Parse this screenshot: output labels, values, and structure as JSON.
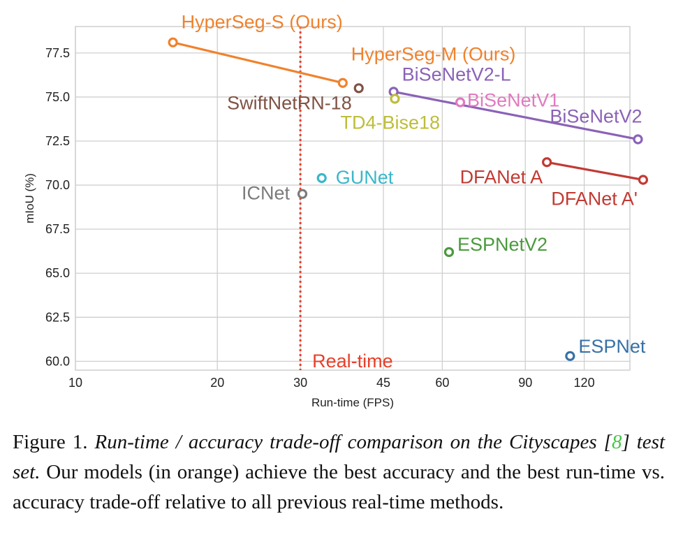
{
  "chart_data": {
    "type": "scatter",
    "xlabel": "Run-time (FPS)",
    "ylabel": "mIoU (%)",
    "x_scale": "log",
    "xlim": [
      10,
      150
    ],
    "ylim": [
      59.5,
      79.0
    ],
    "x_ticks": [
      10,
      20,
      30,
      45,
      60,
      90,
      120
    ],
    "x_tick_labels": [
      "10",
      "20",
      "30",
      "45",
      "60",
      "90",
      "120"
    ],
    "y_ticks": [
      60.0,
      62.5,
      65.0,
      67.5,
      70.0,
      72.5,
      75.0,
      77.5
    ],
    "y_tick_labels": [
      "60.0",
      "62.5",
      "65.0",
      "67.5",
      "70.0",
      "72.5",
      "75.0",
      "77.5"
    ],
    "grid": true,
    "reference_line": {
      "x": 30,
      "label": "Real-time",
      "color": "#e8402a"
    },
    "series": [
      {
        "name": "HyperSeg",
        "color": "#f0822d",
        "line": true,
        "points": [
          {
            "x": 16.1,
            "y": 78.1,
            "label": "HyperSeg-S (Ours)"
          },
          {
            "x": 36.9,
            "y": 75.8,
            "label": "HyperSeg-M (Ours)"
          }
        ]
      },
      {
        "name": "SwiftNetRN-18",
        "color": "#7f5345",
        "line": false,
        "points": [
          {
            "x": 39.9,
            "y": 75.5,
            "label": "SwiftNetRN-18"
          }
        ]
      },
      {
        "name": "BiSeNetV2",
        "color": "#8a62b7",
        "line": true,
        "points": [
          {
            "x": 47.3,
            "y": 75.3,
            "label": "BiSeNetV2-L"
          },
          {
            "x": 156.0,
            "y": 72.6,
            "label": "BiSeNetV2"
          }
        ]
      },
      {
        "name": "TD4-Bise18",
        "color": "#bdbd3b",
        "line": false,
        "points": [
          {
            "x": 47.6,
            "y": 74.9,
            "label": "TD4-Bise18"
          }
        ]
      },
      {
        "name": "BiSeNetV1",
        "color": "#e07ac0",
        "line": false,
        "points": [
          {
            "x": 65.5,
            "y": 74.7,
            "label": "BiSeNetV1"
          }
        ]
      },
      {
        "name": "DFANet",
        "color": "#c23a33",
        "line": true,
        "points": [
          {
            "x": 100.0,
            "y": 71.3,
            "label": "DFANet A"
          },
          {
            "x": 160.0,
            "y": 70.3,
            "label": "DFANet A'"
          }
        ]
      },
      {
        "name": "GUNet",
        "color": "#3ab7c9",
        "line": false,
        "points": [
          {
            "x": 33.3,
            "y": 70.4,
            "label": "GUNet"
          }
        ]
      },
      {
        "name": "ICNet",
        "color": "#7c7c7c",
        "line": false,
        "points": [
          {
            "x": 30.3,
            "y": 69.5,
            "label": "ICNet"
          }
        ]
      },
      {
        "name": "ESPNetV2",
        "color": "#4a9a3d",
        "line": false,
        "points": [
          {
            "x": 62.0,
            "y": 66.2,
            "label": "ESPNetV2"
          }
        ]
      },
      {
        "name": "ESPNet",
        "color": "#3771a6",
        "line": false,
        "points": [
          {
            "x": 112.0,
            "y": 60.3,
            "label": "ESPNet"
          }
        ]
      }
    ]
  },
  "caption": {
    "prefix": "Figure 1.",
    "italic_part1": "Run-time / accuracy trade-off comparison on the Cityscapes [",
    "cite": "8",
    "italic_part2": "] test set.",
    "rest": "Our models (in orange) achieve the best accuracy and the best run-time vs. accuracy trade-off relative to all previous real-time methods."
  }
}
